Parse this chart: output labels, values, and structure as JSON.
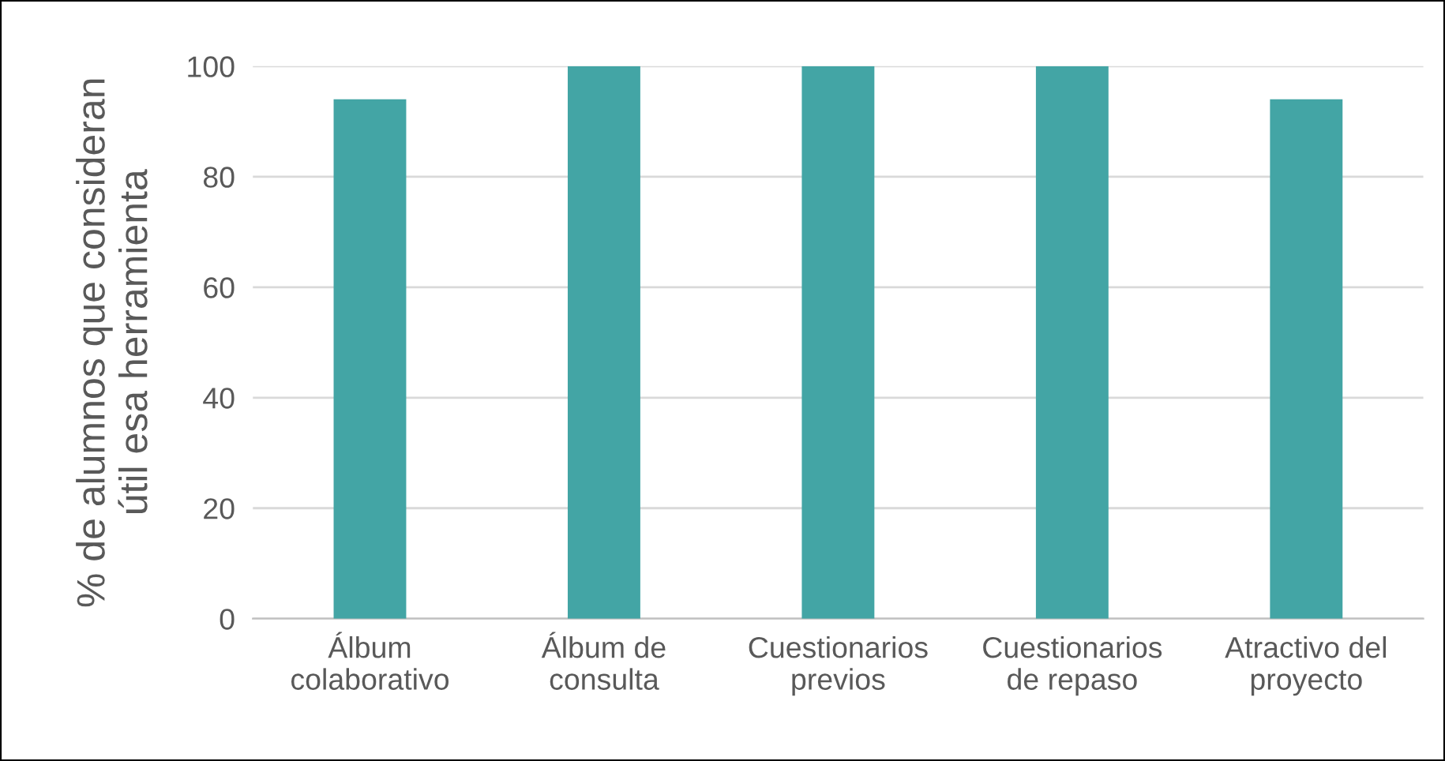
{
  "chart_data": {
    "type": "bar",
    "ylabel": "% de alumnos que consideran\nútil esa herramienta",
    "categories": [
      "Álbum\ncolaborativo",
      "Álbum de\nconsulta",
      "Cuestionarios\nprevios",
      "Cuestionarios\nde repaso",
      "Atractivo del\nproyecto"
    ],
    "values": [
      94,
      100,
      100,
      100,
      94
    ],
    "color": "#43a5a5",
    "ylim": [
      0,
      100
    ],
    "yticks": [
      0,
      20,
      40,
      60,
      80,
      100
    ],
    "grid": "y",
    "legend": false
  }
}
